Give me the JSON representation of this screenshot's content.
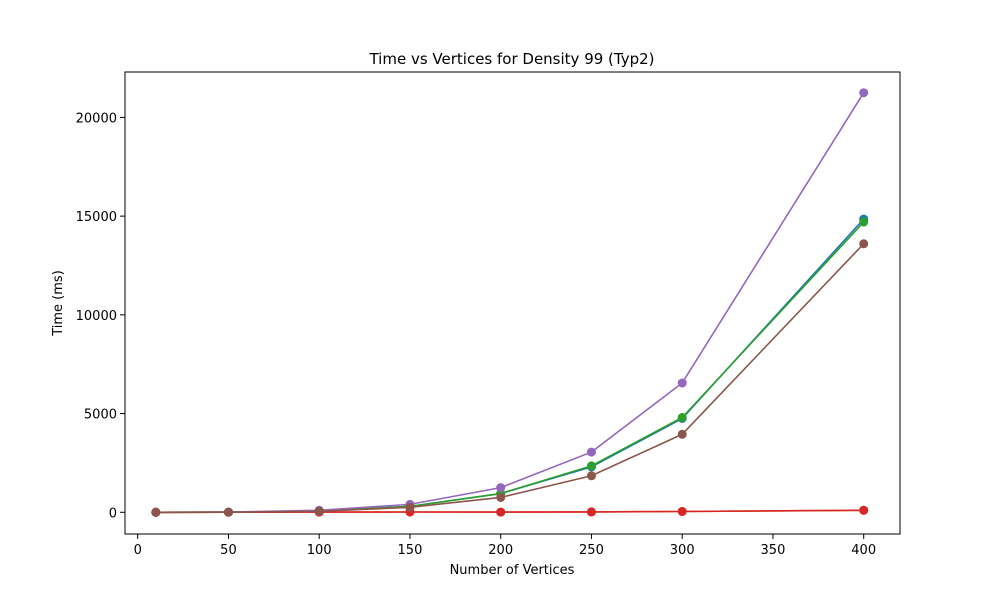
{
  "chart_data": {
    "type": "line",
    "title": "Time vs Vertices for Density 99 (Typ2)",
    "xlabel": "Number of Vertices",
    "ylabel": "Time (ms)",
    "xlim": [
      -7,
      420
    ],
    "ylim": [
      -1100,
      22300
    ],
    "xticks": [
      0,
      50,
      100,
      150,
      200,
      250,
      300,
      350,
      400
    ],
    "yticks": [
      0,
      5000,
      10000,
      15000,
      20000
    ],
    "grid": false,
    "legend": "none",
    "x": [
      10,
      50,
      100,
      150,
      200,
      250,
      300,
      400
    ],
    "series": [
      {
        "color": "#1f77b4",
        "values": [
          0,
          5,
          60,
          300,
          950,
          2300,
          4750,
          14850
        ]
      },
      {
        "color": "#ff7f0e",
        "values": [
          0,
          3,
          10,
          15,
          10,
          20,
          40,
          100
        ]
      },
      {
        "color": "#2ca02c",
        "values": [
          0,
          5,
          60,
          300,
          950,
          2350,
          4800,
          14700
        ]
      },
      {
        "color": "#d62728",
        "values": [
          0,
          3,
          10,
          15,
          10,
          20,
          40,
          100
        ]
      },
      {
        "color": "#9467bd",
        "values": [
          0,
          10,
          100,
          400,
          1250,
          3050,
          6550,
          21250
        ]
      },
      {
        "color": "#8c564b",
        "values": [
          0,
          5,
          50,
          250,
          750,
          1850,
          3950,
          13600
        ]
      }
    ]
  }
}
